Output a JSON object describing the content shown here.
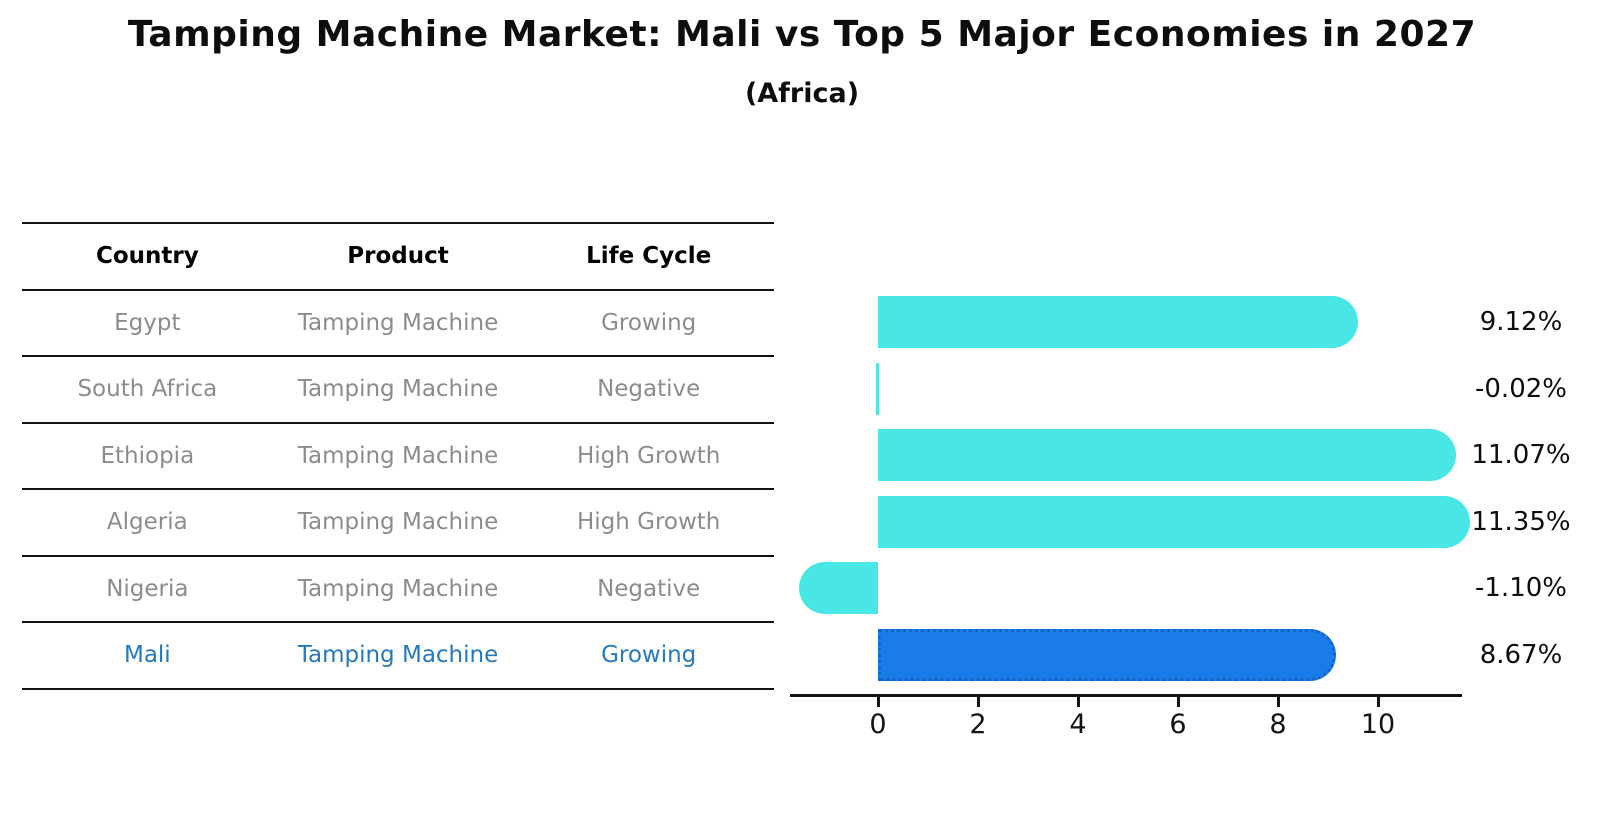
{
  "title": "Tamping Machine Market: Mali vs Top 5 Major Economies in 2027",
  "subtitle": "(Africa)",
  "table": {
    "headers": [
      "Country",
      "Product",
      "Life Cycle"
    ],
    "rows": [
      {
        "country": "Egypt",
        "product": "Tamping Machine",
        "life_cycle": "Growing",
        "highlight": false
      },
      {
        "country": "South Africa",
        "product": "Tamping Machine",
        "life_cycle": "Negative",
        "highlight": false
      },
      {
        "country": "Ethiopia",
        "product": "Tamping Machine",
        "life_cycle": "High Growth",
        "highlight": false
      },
      {
        "country": "Algeria",
        "product": "Tamping Machine",
        "life_cycle": "High Growth",
        "highlight": false
      },
      {
        "country": "Nigeria",
        "product": "Tamping Machine",
        "life_cycle": "Negative",
        "highlight": false
      },
      {
        "country": "Mali",
        "product": "Tamping Machine",
        "life_cycle": "Growing",
        "highlight": true
      }
    ]
  },
  "chart_data": {
    "type": "bar",
    "orientation": "horizontal",
    "categories": [
      "Egypt",
      "South Africa",
      "Ethiopia",
      "Algeria",
      "Nigeria",
      "Mali"
    ],
    "values": [
      9.12,
      -0.02,
      11.07,
      11.35,
      -1.1,
      8.67
    ],
    "value_labels": [
      "9.12%",
      "-0.02%",
      "11.07%",
      "11.35%",
      "-1.10%",
      "8.67%"
    ],
    "x_ticks": [
      "0",
      "2",
      "4",
      "6",
      "8",
      "10"
    ],
    "xlim": [
      -1.7,
      12.0
    ],
    "grid": false,
    "legend": "none",
    "highlight_index": 5,
    "bar_color": "#48E6E4",
    "highlight_bar_color": "#1A7CE8",
    "highlight_border_color": "#1465C8",
    "highlight_text_color": "#2579BE"
  }
}
